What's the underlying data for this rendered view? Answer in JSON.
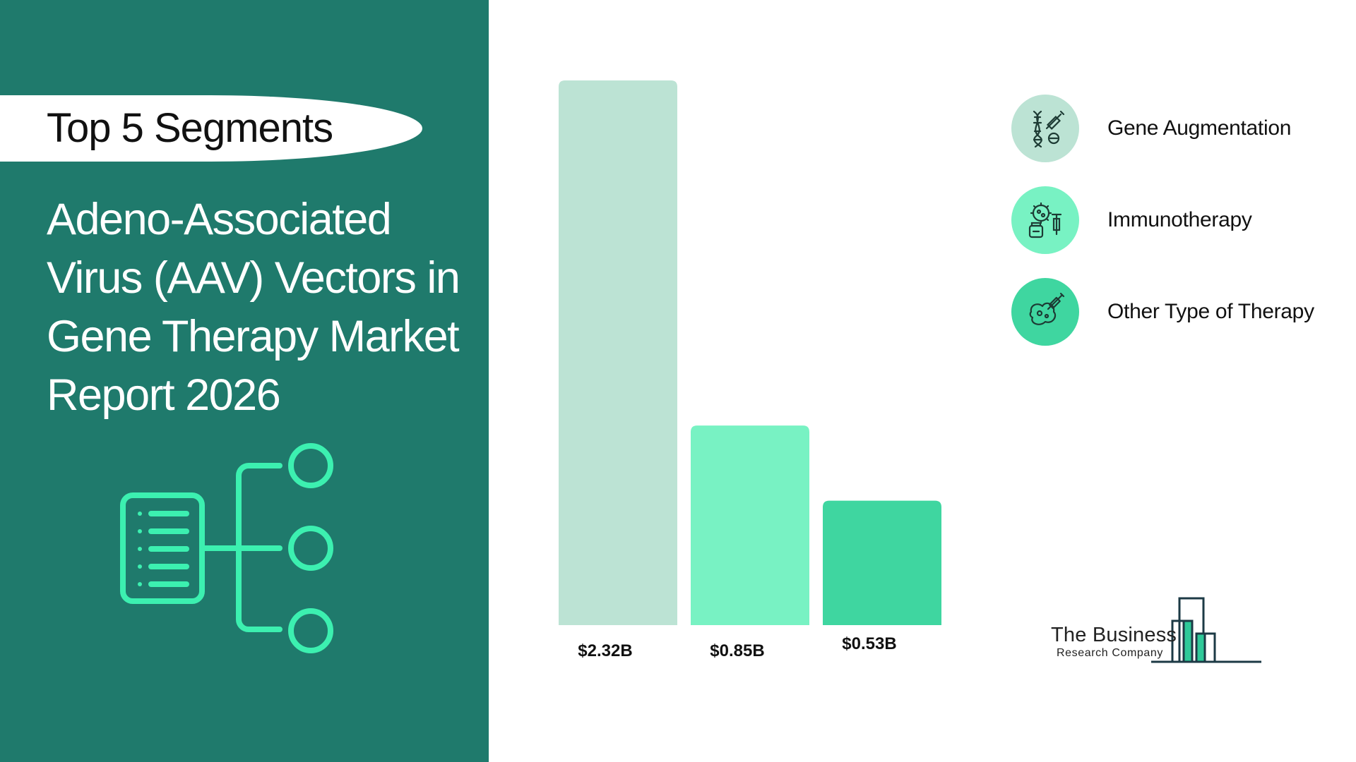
{
  "header": {
    "badge_label": "Top 5 Segments",
    "title": "Adeno-Associated Virus (AAV) Vectors in Gene Therapy Market Report 2026"
  },
  "chart_data": {
    "type": "bar",
    "categories": [
      "Gene Augmentation",
      "Immunotherapy",
      "Other Type of Therapy"
    ],
    "values": [
      2.32,
      0.85,
      0.53
    ],
    "value_labels": [
      "$2.32B",
      "$0.85B",
      "$0.53B"
    ],
    "colors": [
      "#bce3d4",
      "#78f2c3",
      "#3fd6a0"
    ],
    "title": "",
    "xlabel": "",
    "ylabel": "",
    "ylim": [
      0,
      2.32
    ],
    "grid": false,
    "legend_position": "right"
  },
  "legend": {
    "items": [
      {
        "label": "Gene Augmentation",
        "icon": "dna-syringe-icon",
        "color": "#bce3d4"
      },
      {
        "label": "Immunotherapy",
        "icon": "virus-medicine-icon",
        "color": "#78f2c3"
      },
      {
        "label": "Other Type of Therapy",
        "icon": "organ-injection-icon",
        "color": "#3fd6a0"
      }
    ]
  },
  "logo": {
    "name": "The Business",
    "subtitle": "Research Company"
  },
  "theme": {
    "panel_color": "#1f7a6c",
    "accent_color": "#3cf0b0"
  }
}
